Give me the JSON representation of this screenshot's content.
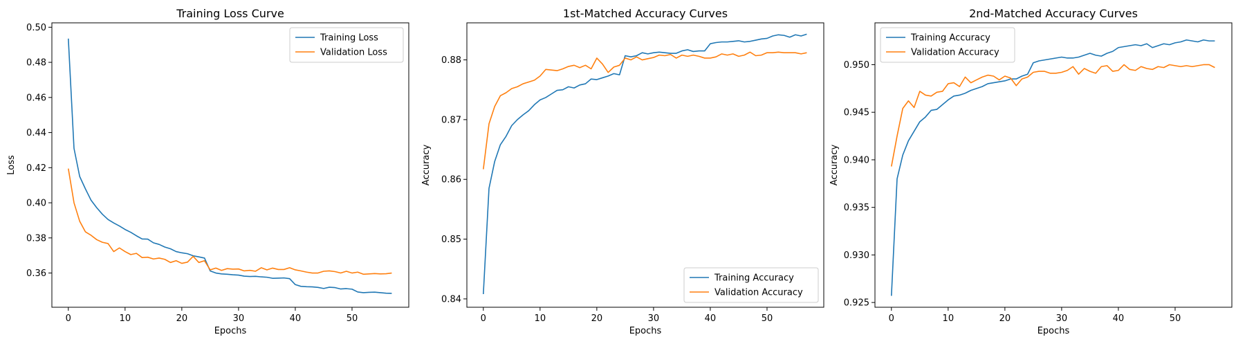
{
  "colors": {
    "training": "#1f77b4",
    "validation": "#ff7f0e"
  },
  "chart_data": [
    {
      "type": "line",
      "title": "Training Loss Curve",
      "xlabel": "Epochs",
      "ylabel": "Loss",
      "xlim": [
        -2.9,
        60.0
      ],
      "ylim": [
        0.3405,
        0.5025
      ],
      "xticks": [
        0,
        10,
        20,
        30,
        40,
        50
      ],
      "xtick_labels": [
        "0",
        "10",
        "20",
        "30",
        "40",
        "50"
      ],
      "yticks": [
        0.36,
        0.38,
        0.4,
        0.42,
        0.44,
        0.46,
        0.48,
        0.5
      ],
      "ytick_labels": [
        "0.36",
        "0.38",
        "0.40",
        "0.42",
        "0.44",
        "0.46",
        "0.48",
        "0.50"
      ],
      "legend_loc": "top-right",
      "grid": false,
      "series": [
        {
          "name": "Training Loss",
          "color_key": "training",
          "x": [
            0,
            1,
            2,
            3,
            4,
            5,
            6,
            7,
            8,
            9,
            10,
            11,
            12,
            13,
            14,
            15,
            16,
            17,
            18,
            19,
            20,
            21,
            22,
            23,
            24,
            25,
            26,
            27,
            28,
            29,
            30,
            31,
            32,
            33,
            34,
            35,
            36,
            37,
            38,
            39,
            40,
            41,
            42,
            43,
            44,
            45,
            46,
            47,
            48,
            49,
            50,
            51,
            52,
            53,
            54,
            55,
            56,
            57
          ],
          "values": [
            0.4935,
            0.431,
            0.415,
            0.408,
            0.4015,
            0.3972,
            0.3935,
            0.3905,
            0.3885,
            0.3868,
            0.3848,
            0.3832,
            0.3812,
            0.3794,
            0.3793,
            0.3772,
            0.3763,
            0.3748,
            0.3738,
            0.3722,
            0.3715,
            0.371,
            0.3698,
            0.3692,
            0.3685,
            0.3612,
            0.36,
            0.3595,
            0.3593,
            0.359,
            0.3588,
            0.3582,
            0.358,
            0.3581,
            0.3578,
            0.3576,
            0.357,
            0.3571,
            0.3572,
            0.3568,
            0.3534,
            0.3524,
            0.3522,
            0.3521,
            0.3518,
            0.3512,
            0.3519,
            0.3517,
            0.3509,
            0.3511,
            0.3508,
            0.3492,
            0.3488,
            0.349,
            0.3491,
            0.3488,
            0.3485,
            0.3484
          ]
        },
        {
          "name": "Validation Loss",
          "color_key": "validation",
          "x": [
            0,
            1,
            2,
            3,
            4,
            5,
            6,
            7,
            8,
            9,
            10,
            11,
            12,
            13,
            14,
            15,
            16,
            17,
            18,
            19,
            20,
            21,
            22,
            23,
            24,
            25,
            26,
            27,
            28,
            29,
            30,
            31,
            32,
            33,
            34,
            35,
            36,
            37,
            38,
            39,
            40,
            41,
            42,
            43,
            44,
            45,
            46,
            47,
            48,
            49,
            50,
            51,
            52,
            53,
            54,
            55,
            56,
            57
          ],
          "values": [
            0.4195,
            0.4,
            0.3895,
            0.3835,
            0.3815,
            0.379,
            0.3775,
            0.3768,
            0.3722,
            0.3743,
            0.3722,
            0.3705,
            0.3712,
            0.3688,
            0.369,
            0.368,
            0.3685,
            0.3678,
            0.366,
            0.367,
            0.3655,
            0.3662,
            0.3695,
            0.366,
            0.367,
            0.3618,
            0.3628,
            0.3615,
            0.3625,
            0.3622,
            0.3623,
            0.3612,
            0.3615,
            0.361,
            0.363,
            0.3618,
            0.3628,
            0.362,
            0.362,
            0.363,
            0.3618,
            0.3612,
            0.3605,
            0.36,
            0.36,
            0.361,
            0.3612,
            0.3608,
            0.36,
            0.361,
            0.36,
            0.3605,
            0.3593,
            0.3595,
            0.3597,
            0.3595,
            0.3596,
            0.36
          ]
        }
      ]
    },
    {
      "type": "line",
      "title": "1st-Matched Accuracy Curves",
      "xlabel": "Epochs",
      "ylabel": "Accuracy",
      "xlim": [
        -2.9,
        60.0
      ],
      "ylim": [
        0.8386,
        0.8862
      ],
      "xticks": [
        0,
        10,
        20,
        30,
        40,
        50
      ],
      "xtick_labels": [
        "0",
        "10",
        "20",
        "30",
        "40",
        "50"
      ],
      "yticks": [
        0.84,
        0.85,
        0.86,
        0.87,
        0.88
      ],
      "ytick_labels": [
        "0.84",
        "0.85",
        "0.86",
        "0.87",
        "0.88"
      ],
      "legend_loc": "bottom-right",
      "grid": false,
      "series": [
        {
          "name": "Training Accuracy",
          "color_key": "training",
          "x": [
            0,
            1,
            2,
            3,
            4,
            5,
            6,
            7,
            8,
            9,
            10,
            11,
            12,
            13,
            14,
            15,
            16,
            17,
            18,
            19,
            20,
            21,
            22,
            23,
            24,
            25,
            26,
            27,
            28,
            29,
            30,
            31,
            32,
            33,
            34,
            35,
            36,
            37,
            38,
            39,
            40,
            41,
            42,
            43,
            44,
            45,
            46,
            47,
            48,
            49,
            50,
            51,
            52,
            53,
            54,
            55,
            56,
            57
          ],
          "values": [
            0.8408,
            0.8585,
            0.863,
            0.8658,
            0.8672,
            0.869,
            0.87,
            0.8708,
            0.8715,
            0.8725,
            0.8733,
            0.8737,
            0.8743,
            0.8749,
            0.875,
            0.8755,
            0.8753,
            0.8758,
            0.876,
            0.8768,
            0.8767,
            0.877,
            0.8773,
            0.8777,
            0.8775,
            0.8807,
            0.8805,
            0.8807,
            0.8812,
            0.881,
            0.8812,
            0.8813,
            0.8812,
            0.8811,
            0.8811,
            0.8815,
            0.8817,
            0.8814,
            0.8815,
            0.8815,
            0.8827,
            0.8829,
            0.883,
            0.883,
            0.8831,
            0.8832,
            0.883,
            0.8831,
            0.8833,
            0.8835,
            0.8836,
            0.884,
            0.8842,
            0.8841,
            0.8838,
            0.8842,
            0.884,
            0.8843
          ]
        },
        {
          "name": "Validation Accuracy",
          "color_key": "validation",
          "x": [
            0,
            1,
            2,
            3,
            4,
            5,
            6,
            7,
            8,
            9,
            10,
            11,
            12,
            13,
            14,
            15,
            16,
            17,
            18,
            19,
            20,
            21,
            22,
            23,
            24,
            25,
            26,
            27,
            28,
            29,
            30,
            31,
            32,
            33,
            34,
            35,
            36,
            37,
            38,
            39,
            40,
            41,
            42,
            43,
            44,
            45,
            46,
            47,
            48,
            49,
            50,
            51,
            52,
            53,
            54,
            55,
            56,
            57
          ],
          "values": [
            0.8617,
            0.8693,
            0.8722,
            0.874,
            0.8745,
            0.8752,
            0.8755,
            0.876,
            0.8763,
            0.8766,
            0.8773,
            0.8784,
            0.8783,
            0.8782,
            0.8785,
            0.8789,
            0.8791,
            0.8787,
            0.8791,
            0.8785,
            0.8803,
            0.8793,
            0.8779,
            0.8788,
            0.8791,
            0.8803,
            0.88,
            0.8805,
            0.88,
            0.8802,
            0.8804,
            0.8808,
            0.8807,
            0.8809,
            0.8803,
            0.8808,
            0.8806,
            0.8808,
            0.8806,
            0.8803,
            0.8803,
            0.8805,
            0.881,
            0.8808,
            0.881,
            0.8806,
            0.8808,
            0.8813,
            0.8807,
            0.8808,
            0.8812,
            0.8812,
            0.8813,
            0.8812,
            0.8812,
            0.8812,
            0.881,
            0.8812
          ]
        }
      ]
    },
    {
      "type": "line",
      "title": "2nd-Matched Accuracy Curves",
      "xlabel": "Epochs",
      "ylabel": "Accuracy",
      "xlim": [
        -2.9,
        60.0
      ],
      "ylim": [
        0.9245,
        0.9544
      ],
      "xticks": [
        0,
        10,
        20,
        30,
        40,
        50
      ],
      "xtick_labels": [
        "0",
        "10",
        "20",
        "30",
        "40",
        "50"
      ],
      "yticks": [
        0.925,
        0.93,
        0.935,
        0.94,
        0.945,
        0.95
      ],
      "ytick_labels": [
        "0.925",
        "0.930",
        "0.935",
        "0.940",
        "0.945",
        "0.950"
      ],
      "legend_loc": "top-left",
      "grid": false,
      "series": [
        {
          "name": "Training Accuracy",
          "color_key": "training",
          "x": [
            0,
            1,
            2,
            3,
            4,
            5,
            6,
            7,
            8,
            9,
            10,
            11,
            12,
            13,
            14,
            15,
            16,
            17,
            18,
            19,
            20,
            21,
            22,
            23,
            24,
            25,
            26,
            27,
            28,
            29,
            30,
            31,
            32,
            33,
            34,
            35,
            36,
            37,
            38,
            39,
            40,
            41,
            42,
            43,
            44,
            45,
            46,
            47,
            48,
            49,
            50,
            51,
            52,
            53,
            54,
            55,
            56,
            57
          ],
          "values": [
            0.9257,
            0.938,
            0.9405,
            0.942,
            0.943,
            0.944,
            0.9445,
            0.9452,
            0.9453,
            0.9458,
            0.9463,
            0.9467,
            0.9468,
            0.947,
            0.9473,
            0.9475,
            0.9477,
            0.948,
            0.9481,
            0.9482,
            0.9483,
            0.9485,
            0.9485,
            0.9488,
            0.949,
            0.9502,
            0.9504,
            0.9505,
            0.9506,
            0.9507,
            0.9508,
            0.9507,
            0.9507,
            0.9508,
            0.951,
            0.9512,
            0.951,
            0.9509,
            0.9512,
            0.9514,
            0.9518,
            0.9519,
            0.952,
            0.9521,
            0.952,
            0.9522,
            0.9518,
            0.952,
            0.9522,
            0.9521,
            0.9523,
            0.9524,
            0.9526,
            0.9525,
            0.9524,
            0.9526,
            0.9525,
            0.9525
          ]
        },
        {
          "name": "Validation Accuracy",
          "color_key": "validation",
          "x": [
            0,
            1,
            2,
            3,
            4,
            5,
            6,
            7,
            8,
            9,
            10,
            11,
            12,
            13,
            14,
            15,
            16,
            17,
            18,
            19,
            20,
            21,
            22,
            23,
            24,
            25,
            26,
            27,
            28,
            29,
            30,
            31,
            32,
            33,
            34,
            35,
            36,
            37,
            38,
            39,
            40,
            41,
            42,
            43,
            44,
            45,
            46,
            47,
            48,
            49,
            50,
            51,
            52,
            53,
            54,
            55,
            56,
            57
          ],
          "values": [
            0.9393,
            0.9425,
            0.9454,
            0.9462,
            0.9455,
            0.9472,
            0.9468,
            0.9467,
            0.9471,
            0.9472,
            0.948,
            0.9481,
            0.9477,
            0.9487,
            0.9481,
            0.9484,
            0.9487,
            0.9489,
            0.9488,
            0.9484,
            0.9488,
            0.9486,
            0.9478,
            0.9485,
            0.9487,
            0.9492,
            0.9493,
            0.9493,
            0.9491,
            0.9491,
            0.9492,
            0.9494,
            0.9498,
            0.949,
            0.9496,
            0.9493,
            0.9491,
            0.9498,
            0.9499,
            0.9493,
            0.9494,
            0.95,
            0.9495,
            0.9494,
            0.9498,
            0.9496,
            0.9495,
            0.9498,
            0.9497,
            0.95,
            0.9499,
            0.9498,
            0.9499,
            0.9498,
            0.9499,
            0.95,
            0.95,
            0.9497
          ]
        }
      ]
    }
  ]
}
